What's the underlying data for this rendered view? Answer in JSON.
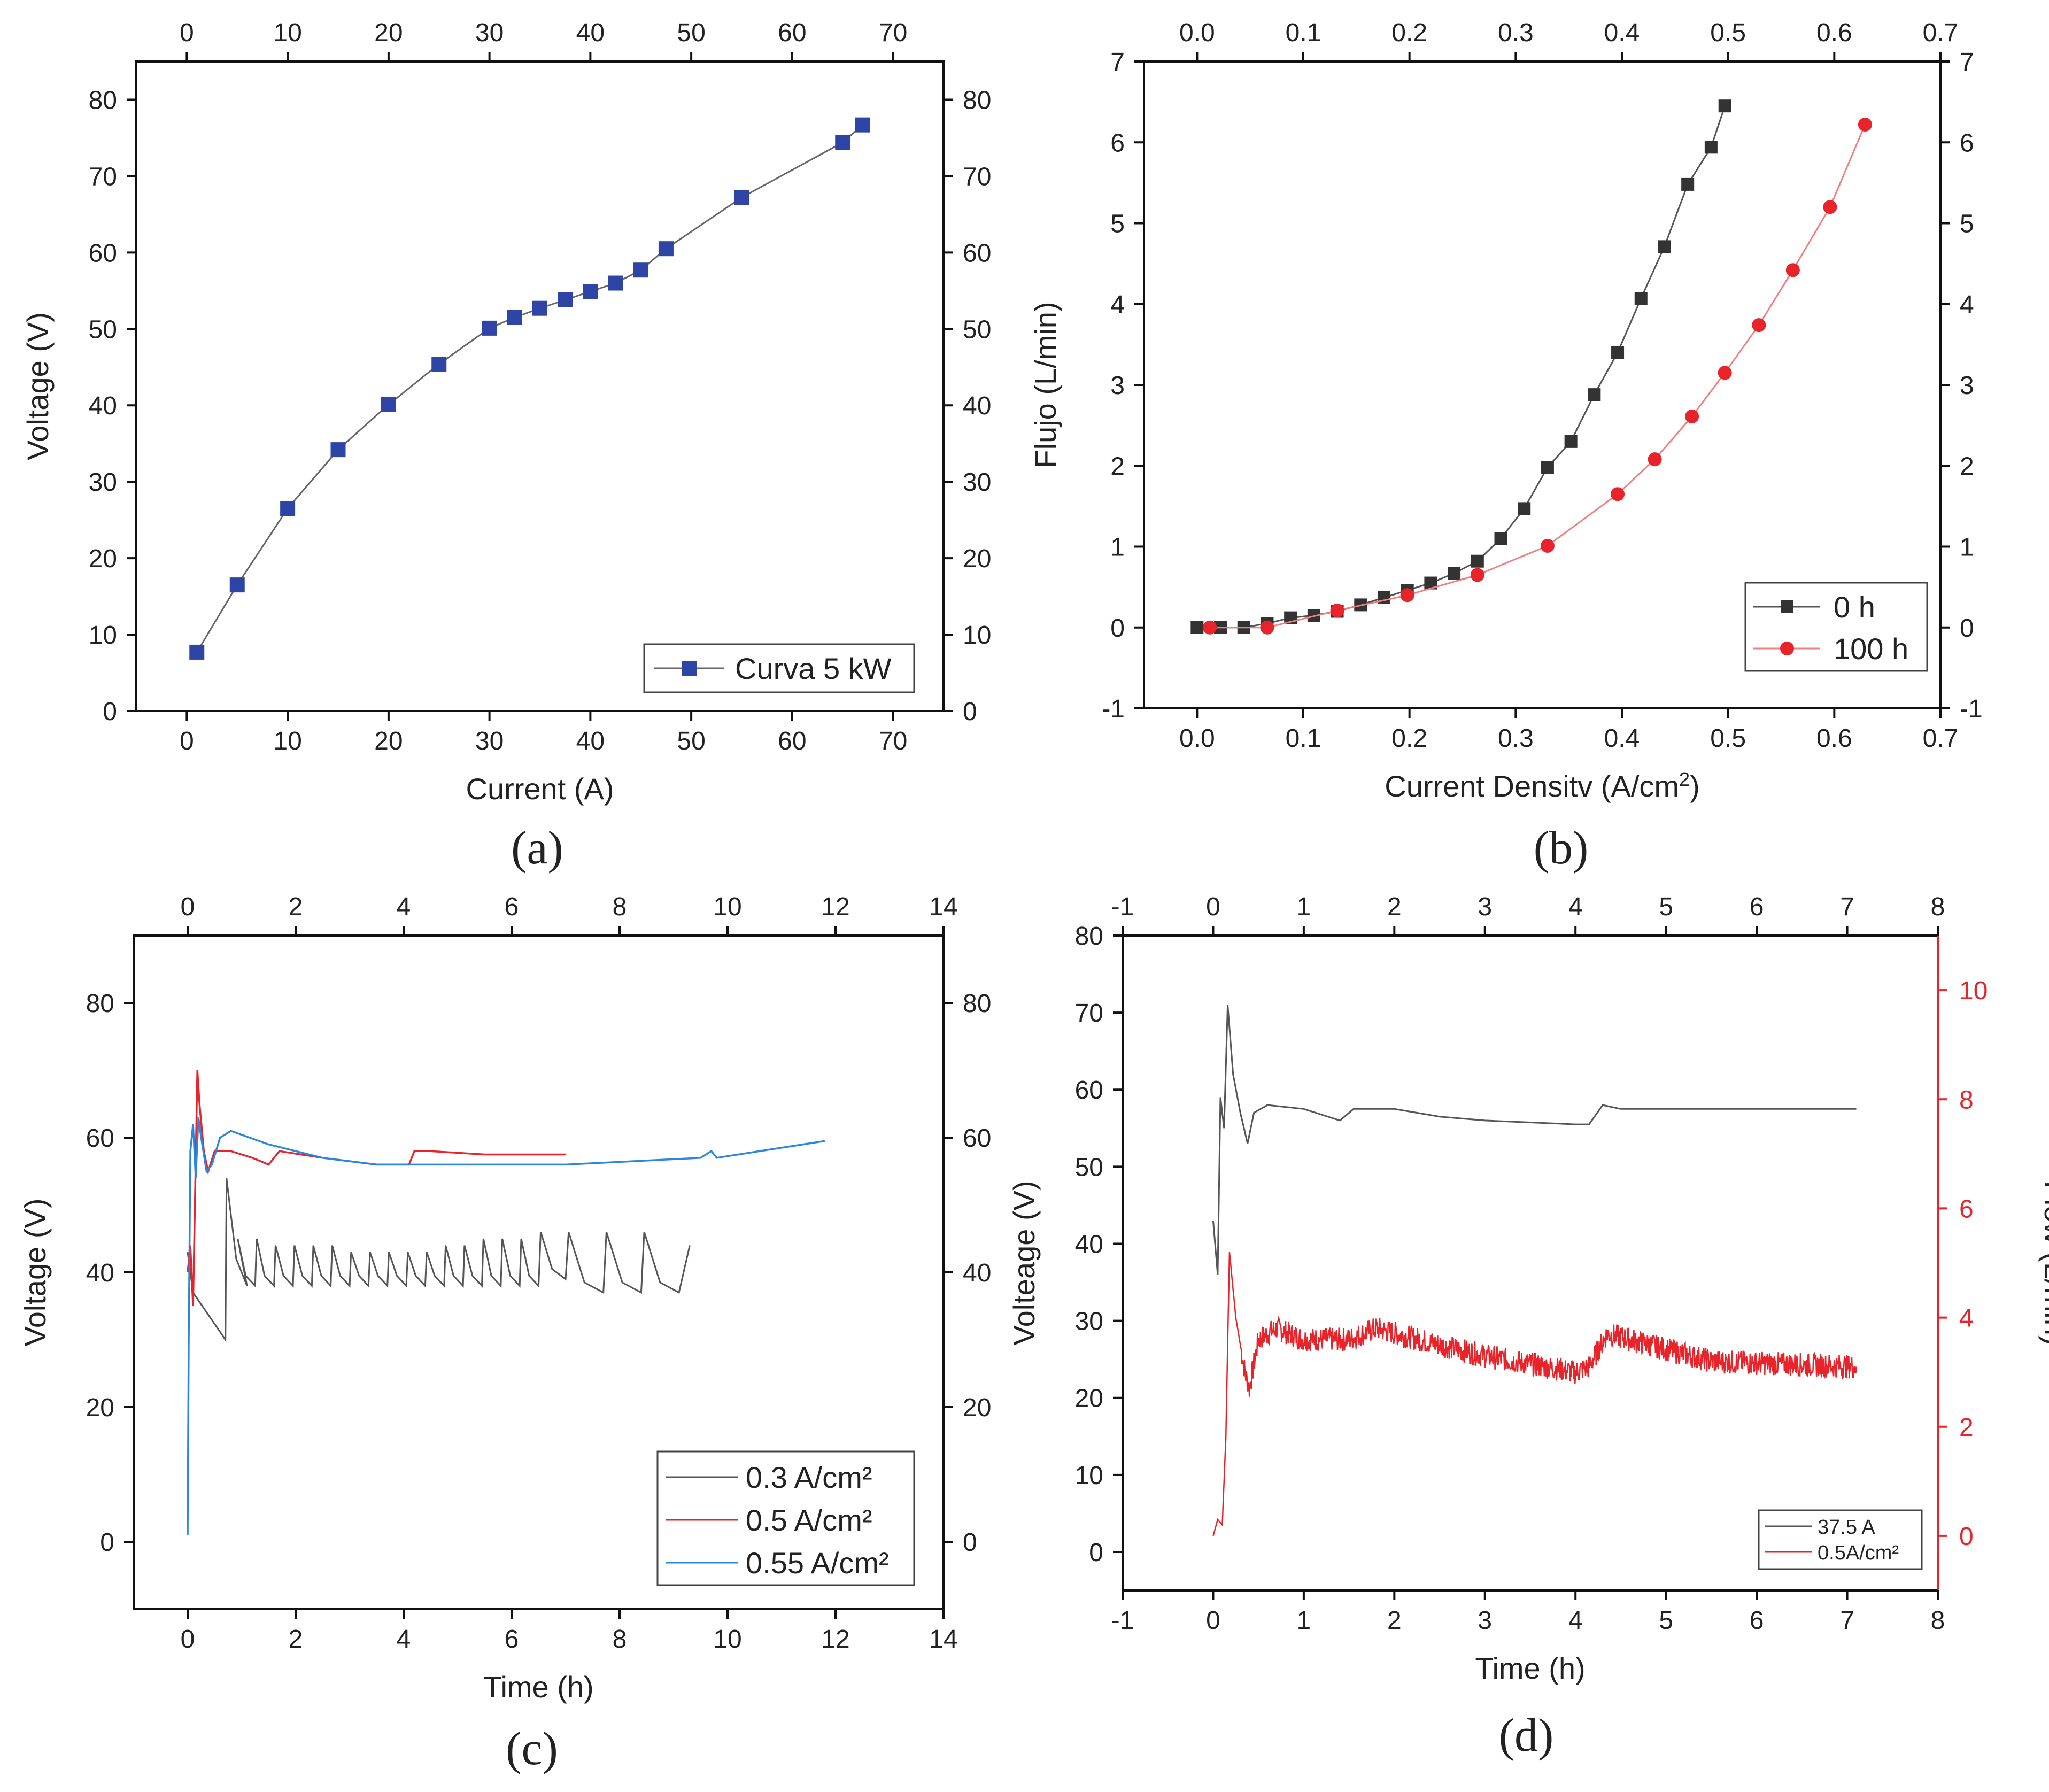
{
  "colors": {
    "axis": "#111111",
    "series_black": "#333333",
    "series_grey": "#666666",
    "series_blue_marker": "#2e45a5",
    "series_red": "#e8232a",
    "series_lightblue": "#2b86e0",
    "flow_axis": "#e8232a"
  },
  "chart_data": [
    {
      "panel": "(a)",
      "type": "line",
      "xlabel": "Current (A)",
      "ylabel": "Voltage (V)",
      "xlim": [
        -5,
        75
      ],
      "ylim": [
        0,
        85
      ],
      "xticks": [
        0,
        10,
        20,
        30,
        40,
        50,
        60,
        70
      ],
      "yticks": [
        0,
        10,
        20,
        30,
        40,
        50,
        60,
        70,
        80
      ],
      "legend_position": "bottom-right",
      "series": [
        {
          "name": "Curva 5 kW",
          "marker": "square",
          "color": "#2e45a5",
          "x": [
            1,
            5,
            10,
            15,
            20,
            25,
            30,
            32.5,
            35,
            37.5,
            40,
            42.5,
            45,
            47.5,
            55,
            65,
            67
          ],
          "y": [
            7.7,
            16.5,
            26.5,
            34.2,
            40.1,
            45.4,
            50.1,
            51.5,
            52.7,
            53.8,
            54.9,
            56.0,
            57.7,
            60.5,
            67.2,
            74.4,
            76.7
          ]
        }
      ]
    },
    {
      "panel": "(b)",
      "type": "line",
      "xlabel": "Current Densitv (A/cm",
      "xlabel_sup": "2",
      "xlabel_end": ")",
      "ylabel": "Flujo (L/min)",
      "xlim": [
        -0.05,
        0.7
      ],
      "ylim": [
        -1,
        7
      ],
      "xticks": [
        0.0,
        0.1,
        0.2,
        0.3,
        0.4,
        0.5,
        0.6,
        0.7
      ],
      "yticks": [
        -1,
        0,
        1,
        2,
        3,
        4,
        5,
        6,
        7
      ],
      "legend_position": "bottom-right",
      "series": [
        {
          "name": "0 h",
          "marker": "square",
          "color": "#333333",
          "x": [
            0.0,
            0.022,
            0.044,
            0.066,
            0.088,
            0.11,
            0.132,
            0.154,
            0.176,
            0.198,
            0.22,
            0.242,
            0.264,
            0.286,
            0.308,
            0.33,
            0.352,
            0.374,
            0.396,
            0.418,
            0.44,
            0.462,
            0.484,
            0.497
          ],
          "y": [
            0.0,
            0.0,
            0.0,
            0.05,
            0.12,
            0.15,
            0.2,
            0.28,
            0.37,
            0.46,
            0.55,
            0.67,
            0.82,
            1.1,
            1.47,
            1.98,
            2.3,
            2.88,
            3.4,
            4.07,
            4.71,
            5.48,
            5.94,
            6.45
          ]
        },
        {
          "name": "100 h",
          "marker": "circle",
          "color": "#e8232a",
          "x": [
            0.012,
            0.066,
            0.132,
            0.198,
            0.264,
            0.33,
            0.396,
            0.431,
            0.466,
            0.497,
            0.529,
            0.561,
            0.596,
            0.629
          ],
          "y": [
            0.0,
            0.0,
            0.21,
            0.4,
            0.65,
            1.01,
            1.65,
            2.08,
            2.61,
            3.15,
            3.74,
            4.42,
            5.2,
            6.22
          ]
        }
      ]
    },
    {
      "panel": "(c)",
      "type": "line",
      "xlabel": "Time (h)",
      "ylabel": "Voltage (V)",
      "xlim": [
        -1,
        14
      ],
      "ylim": [
        -10,
        90
      ],
      "xticks": [
        0,
        2,
        4,
        6,
        8,
        10,
        12,
        14
      ],
      "yticks": [
        0,
        20,
        40,
        60,
        80
      ],
      "legend_position": "bottom-right",
      "series": [
        {
          "name": "0.3 A/cm²",
          "color": "#555555",
          "shape": "sawtooth",
          "pts": [
            [
              0.0,
              43
            ],
            [
              0.1,
              37
            ],
            [
              0.7,
              30
            ],
            [
              0.72,
              54
            ],
            [
              0.9,
              42
            ],
            [
              1.1,
              38
            ],
            [
              9.3,
              44
            ]
          ],
          "cycles": [
            [
              0.9,
              1.25,
              45,
              38
            ],
            [
              1.25,
              1.6,
              45,
              38
            ],
            [
              1.6,
              1.95,
              44,
              38
            ],
            [
              1.95,
              2.3,
              44,
              38
            ],
            [
              2.3,
              2.65,
              44,
              38
            ],
            [
              2.65,
              3.0,
              44,
              38
            ],
            [
              3.0,
              3.35,
              43,
              38
            ],
            [
              3.35,
              3.7,
              43,
              38
            ],
            [
              3.7,
              4.05,
              43,
              38
            ],
            [
              4.05,
              4.4,
              43,
              38
            ],
            [
              4.4,
              4.75,
              43,
              38
            ],
            [
              4.75,
              5.1,
              44,
              38
            ],
            [
              5.1,
              5.45,
              44,
              38
            ],
            [
              5.45,
              5.8,
              45,
              38
            ],
            [
              5.8,
              6.15,
              45,
              38
            ],
            [
              6.15,
              6.5,
              45,
              38
            ],
            [
              6.5,
              7.0,
              46,
              39
            ],
            [
              7.0,
              7.7,
              46,
              37
            ],
            [
              7.7,
              8.4,
              46,
              37
            ],
            [
              8.4,
              9.1,
              46,
              37
            ]
          ]
        },
        {
          "name": "0.5 A/cm²",
          "color": "#e8232a",
          "pts": [
            [
              0.0,
              40
            ],
            [
              0.05,
              44
            ],
            [
              0.1,
              35
            ],
            [
              0.18,
              70
            ],
            [
              0.22,
              65
            ],
            [
              0.3,
              58
            ],
            [
              0.38,
              55
            ],
            [
              0.5,
              58
            ],
            [
              0.8,
              58
            ],
            [
              1.2,
              57
            ],
            [
              1.5,
              56
            ],
            [
              1.7,
              58
            ],
            [
              2.5,
              57
            ],
            [
              3.5,
              56
            ],
            [
              4.1,
              56
            ],
            [
              4.2,
              58
            ],
            [
              4.5,
              58
            ],
            [
              5.5,
              57.5
            ],
            [
              6.5,
              57.5
            ],
            [
              7.0,
              57.5
            ]
          ]
        },
        {
          "name": "0.55 A/cm²",
          "color": "#2b86e0",
          "pts": [
            [
              0.0,
              1
            ],
            [
              0.02,
              30
            ],
            [
              0.05,
              58
            ],
            [
              0.1,
              62
            ],
            [
              0.15,
              54
            ],
            [
              0.2,
              63
            ],
            [
              0.25,
              60
            ],
            [
              0.35,
              55
            ],
            [
              0.45,
              56
            ],
            [
              0.6,
              60
            ],
            [
              0.8,
              61
            ],
            [
              1.5,
              59
            ],
            [
              2.5,
              57
            ],
            [
              3.5,
              56
            ],
            [
              5.0,
              56
            ],
            [
              7.0,
              56
            ],
            [
              9.5,
              57
            ],
            [
              9.7,
              58
            ],
            [
              9.8,
              57
            ],
            [
              11.8,
              59.5
            ]
          ]
        }
      ]
    },
    {
      "panel": "(d)",
      "type": "line",
      "xlabel": "Time (h)",
      "ylabel": "Volteage (V)",
      "y2label": "Flow (L/min)",
      "xlim": [
        -1,
        8
      ],
      "ylim": [
        -5,
        80
      ],
      "y2lim": [
        -1,
        11
      ],
      "xticks": [
        -1,
        0,
        1,
        2,
        3,
        4,
        5,
        6,
        7,
        8
      ],
      "yticks": [
        0,
        10,
        20,
        30,
        40,
        50,
        60,
        70,
        80
      ],
      "y2ticks": [
        0,
        2,
        4,
        6,
        8,
        10
      ],
      "legend_position": "bottom-right",
      "series": [
        {
          "name": "37.5 A",
          "axis": "left",
          "color": "#555555",
          "pts": [
            [
              0.0,
              43
            ],
            [
              0.05,
              36
            ],
            [
              0.08,
              59
            ],
            [
              0.12,
              55
            ],
            [
              0.16,
              71
            ],
            [
              0.22,
              62
            ],
            [
              0.3,
              57
            ],
            [
              0.38,
              53
            ],
            [
              0.45,
              57
            ],
            [
              0.6,
              58
            ],
            [
              1.0,
              57.5
            ],
            [
              1.4,
              56
            ],
            [
              1.55,
              57.5
            ],
            [
              2.0,
              57.5
            ],
            [
              2.5,
              56.5
            ],
            [
              3.0,
              56
            ],
            [
              4.0,
              55.5
            ],
            [
              4.15,
              55.5
            ],
            [
              4.3,
              58
            ],
            [
              4.5,
              57.5
            ],
            [
              5.0,
              57.5
            ],
            [
              7.1,
              57.5
            ]
          ]
        },
        {
          "name": "0.5A/cm²",
          "axis": "right",
          "color": "#e8232a",
          "noise": 0.22,
          "pts": [
            [
              0.0,
              0.0
            ],
            [
              0.05,
              0.3
            ],
            [
              0.1,
              0.2
            ],
            [
              0.14,
              1.8
            ],
            [
              0.18,
              5.2
            ],
            [
              0.25,
              4.0
            ],
            [
              0.35,
              3.0
            ],
            [
              0.4,
              2.7
            ],
            [
              0.5,
              3.6
            ],
            [
              0.7,
              3.8
            ],
            [
              1.0,
              3.6
            ],
            [
              1.5,
              3.6
            ],
            [
              1.8,
              3.8
            ],
            [
              2.5,
              3.5
            ],
            [
              3.0,
              3.3
            ],
            [
              4.0,
              3.0
            ],
            [
              4.15,
              3.1
            ],
            [
              4.35,
              3.7
            ],
            [
              4.6,
              3.6
            ],
            [
              5.5,
              3.2
            ],
            [
              7.1,
              3.1
            ]
          ]
        }
      ]
    }
  ],
  "captions": [
    "(a)",
    "(b)",
    "(c)",
    "(d)"
  ]
}
